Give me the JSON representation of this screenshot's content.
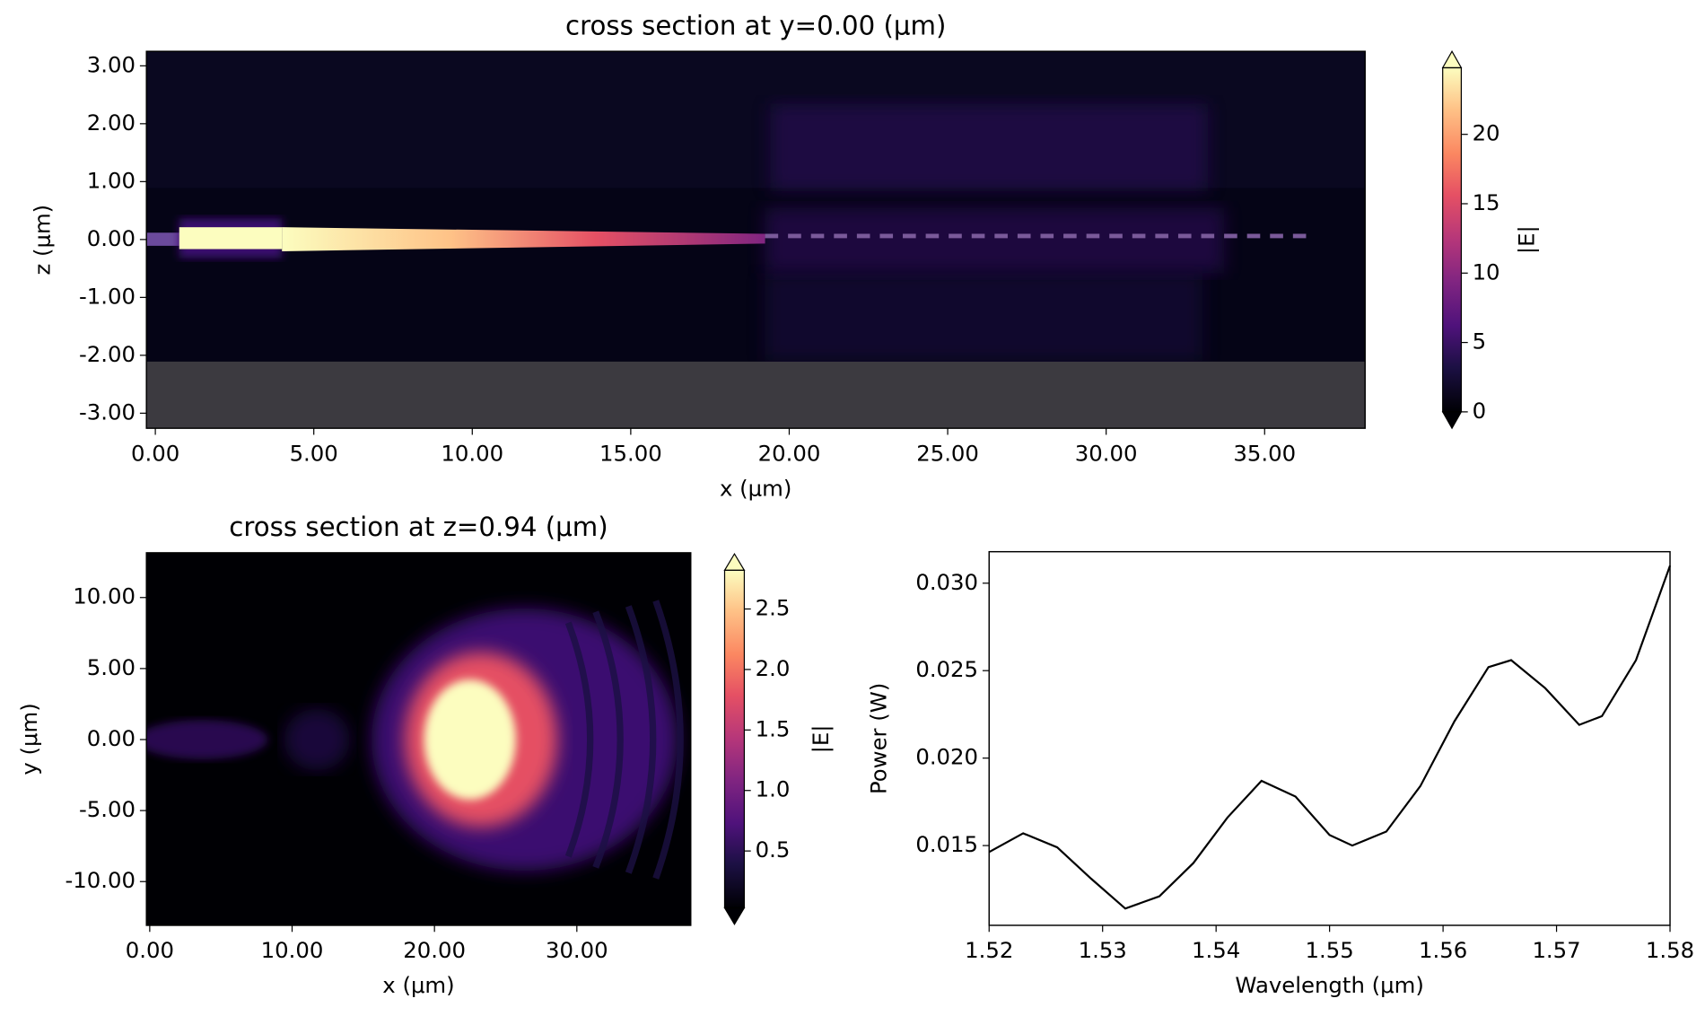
{
  "chart_data": [
    {
      "type": "heatmap",
      "title": "cross section at y=0.00 (μm)",
      "x_label": "x (μm)",
      "y_label": "z (μm)",
      "xlim": [
        -0.28,
        38.17
      ],
      "ylim": [
        -3.26,
        3.25
      ],
      "xticks": [
        {
          "value": 0,
          "label": "0.00"
        },
        {
          "value": 5,
          "label": "5.00"
        },
        {
          "value": 10,
          "label": "10.00"
        },
        {
          "value": 15,
          "label": "15.00"
        },
        {
          "value": 20,
          "label": "20.00"
        },
        {
          "value": 25,
          "label": "25.00"
        },
        {
          "value": 30,
          "label": "30.00"
        },
        {
          "value": 35,
          "label": "35.00"
        }
      ],
      "yticks": [
        {
          "value": 3,
          "label": "3.00"
        },
        {
          "value": 2,
          "label": "2.00"
        },
        {
          "value": 1,
          "label": "1.00"
        },
        {
          "value": 0,
          "label": "0.00"
        },
        {
          "value": -1,
          "label": "-1.00"
        },
        {
          "value": -2,
          "label": "-2.00"
        },
        {
          "value": -3,
          "label": "-3.00"
        }
      ],
      "colormap": "magma",
      "colorbar": {
        "label": "|E|",
        "lim": [
          0,
          24.8
        ],
        "ticks": [
          0,
          5,
          10,
          15,
          20
        ],
        "extend": "both"
      }
    },
    {
      "type": "heatmap",
      "title": "cross section at z=0.94 (μm)",
      "x_label": "x (μm)",
      "y_label": "y (μm)",
      "xlim": [
        -0.23,
        38.0
      ],
      "ylim": [
        -13.08,
        13.15
      ],
      "xticks": [
        {
          "value": 0,
          "label": "0.00"
        },
        {
          "value": 10,
          "label": "10.00"
        },
        {
          "value": 20,
          "label": "20.00"
        },
        {
          "value": 30,
          "label": "30.00"
        }
      ],
      "yticks": [
        {
          "value": 10,
          "label": "10.00"
        },
        {
          "value": 5,
          "label": "5.00"
        },
        {
          "value": 0,
          "label": "0.00"
        },
        {
          "value": -5,
          "label": "-5.00"
        },
        {
          "value": -10,
          "label": "-10.00"
        }
      ],
      "colormap": "magma",
      "colorbar": {
        "label": "|E|",
        "lim": [
          0.03,
          2.82
        ],
        "ticks": [
          0.5,
          {
            "value": 1,
            "label": "1.0"
          },
          1.5,
          {
            "value": 2,
            "label": "2.0"
          },
          2.5
        ],
        "extend": "both"
      }
    },
    {
      "type": "line",
      "x_label": "Wavelength (μm)",
      "y_label": "Power (W)",
      "color": "#000000",
      "xlim": [
        1.52,
        1.58
      ],
      "ylim": [
        0.01044,
        0.0318
      ],
      "xticks": [
        1.52,
        1.53,
        1.54,
        1.55,
        1.56,
        1.57,
        1.58
      ],
      "yticks": [
        {
          "value": 0.015,
          "label": "0.015"
        },
        {
          "value": 0.02,
          "label": "0.020"
        },
        {
          "value": 0.025,
          "label": "0.025"
        },
        {
          "value": 0.03,
          "label": "0.030"
        }
      ],
      "x": [
        1.52,
        1.523,
        1.526,
        1.529,
        1.532,
        1.535,
        1.538,
        1.541,
        1.544,
        1.547,
        1.55,
        1.552,
        1.555,
        1.558,
        1.561,
        1.564,
        1.566,
        1.569,
        1.572,
        1.574,
        1.577,
        1.58
      ],
      "values": [
        0.01463,
        0.0157,
        0.0149,
        0.0131,
        0.0114,
        0.0121,
        0.014,
        0.0166,
        0.0187,
        0.0178,
        0.0156,
        0.015,
        0.0158,
        0.0184,
        0.0221,
        0.0252,
        0.0256,
        0.024,
        0.0219,
        0.0224,
        0.0256,
        0.031
      ]
    }
  ]
}
